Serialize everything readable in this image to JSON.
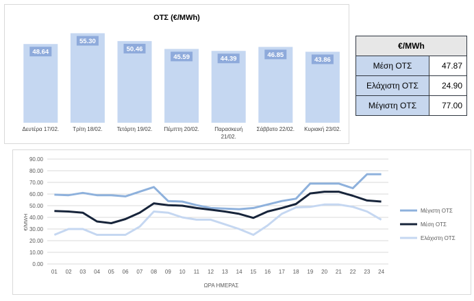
{
  "bar_chart": {
    "chart_data": {
      "type": "bar",
      "title": "ΟΤΣ (€/MWh)",
      "categories": [
        "Δευτέρα 17/02.",
        "Τρίτη 18/02.",
        "Τετάρτη 19/02.",
        "Πέμπτη 20/02.",
        "Παρασκευή 21/02.",
        "Σάββατο 22/02.",
        "Κυριακή 23/02."
      ],
      "category_lines": [
        [
          "Δευτέρα 17/02."
        ],
        [
          "Τρίτη 18/02."
        ],
        [
          "Τετάρτη 19/02."
        ],
        [
          "Πέμπτη 20/02."
        ],
        [
          "Παρασκευή",
          "21/02."
        ],
        [
          "Σάββατο 22/02."
        ],
        [
          "Κυριακή 23/02."
        ]
      ],
      "values": [
        48.64,
        55.3,
        50.46,
        45.59,
        44.39,
        46.85,
        43.86
      ],
      "value_labels": [
        "48.64",
        "55.30",
        "50.46",
        "45.59",
        "44.39",
        "46.85",
        "43.86"
      ],
      "ylim": [
        0,
        60
      ],
      "colors": {
        "bar": "#c5d7f1",
        "label_box": "#8eaadb"
      }
    }
  },
  "summary_table": {
    "header": "€/MWh",
    "rows": [
      {
        "label": "Μέση ΟΤΣ",
        "value": "47.87"
      },
      {
        "label": "Ελάχιστη ΟΤΣ",
        "value": "24.90"
      },
      {
        "label": "Μέγιστη ΟΤΣ",
        "value": "77.00"
      }
    ]
  },
  "line_chart": {
    "chart_data": {
      "type": "line",
      "xlabel": "ΩΡΑ ΗΜΕΡΑΣ",
      "ylabel": "€/MWH",
      "x": [
        "01",
        "02",
        "03",
        "04",
        "05",
        "06",
        "07",
        "08",
        "09",
        "10",
        "11",
        "12",
        "13",
        "14",
        "15",
        "16",
        "17",
        "18",
        "19",
        "20",
        "21",
        "22",
        "23",
        "24"
      ],
      "y_ticks": [
        "0.00",
        "10.00",
        "20.00",
        "30.00",
        "40.00",
        "50.00",
        "60.00",
        "70.00",
        "80.00",
        "90.00"
      ],
      "ylim": [
        0,
        90
      ],
      "grid": true,
      "legend_position": "right",
      "series": [
        {
          "name": "Μέγιστη ΟΤΣ",
          "color": "#8eb1dc",
          "values": [
            59.5,
            59,
            61,
            59,
            59,
            58,
            62,
            66,
            54,
            53.5,
            50.5,
            48,
            47.5,
            47,
            48,
            51,
            54,
            56,
            69,
            69,
            69,
            65,
            77,
            77
          ]
        },
        {
          "name": "Μέση ΟΤΣ",
          "color": "#17243a",
          "values": [
            45.5,
            45,
            44,
            36.5,
            35,
            38.5,
            44,
            52,
            50.5,
            50,
            48,
            46.5,
            45,
            43,
            39.5,
            45,
            48,
            51.5,
            60.5,
            62,
            62,
            58.5,
            54.5,
            53.5
          ]
        },
        {
          "name": "Ελάχιστη ΟΤΣ",
          "color": "#c5d7f1",
          "values": [
            25,
            30,
            30,
            25,
            25,
            25,
            32,
            45,
            44,
            40,
            38,
            38,
            34,
            30,
            25,
            33,
            43,
            48.5,
            49,
            51,
            51,
            49,
            45,
            38
          ]
        }
      ]
    }
  }
}
